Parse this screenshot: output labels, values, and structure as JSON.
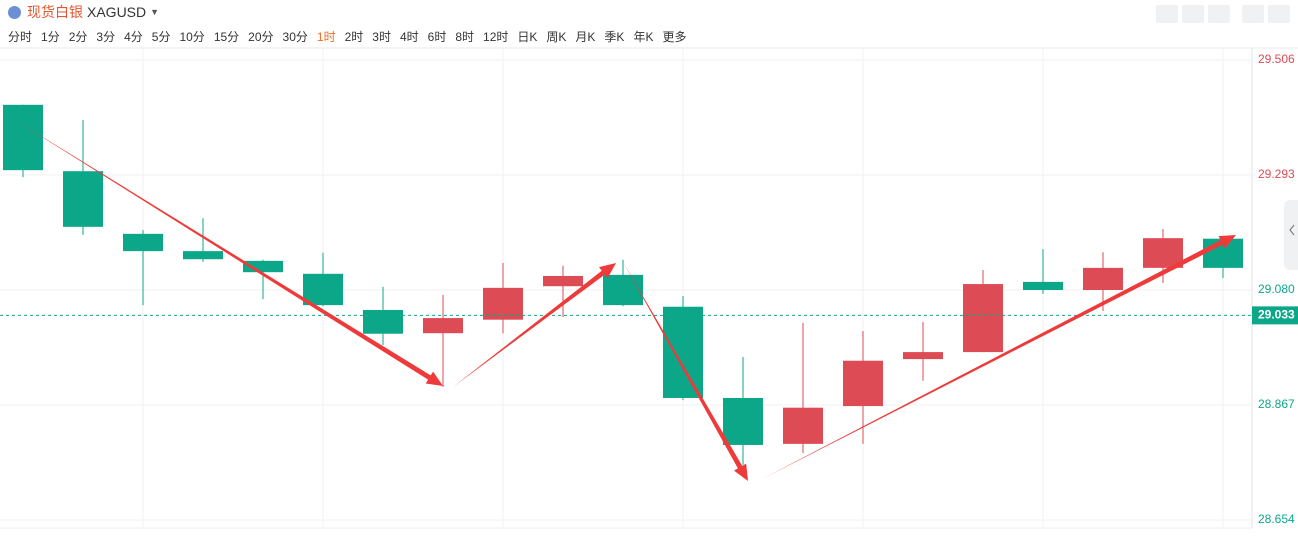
{
  "header": {
    "name": "现货白银",
    "symbol": "XAGUSD",
    "intervals": [
      "分时",
      "1分",
      "2分",
      "3分",
      "4分",
      "5分",
      "10分",
      "15分",
      "20分",
      "30分",
      "1时",
      "2时",
      "3时",
      "4时",
      "6时",
      "8时",
      "12时",
      "日K",
      "周K",
      "月K",
      "季K",
      "年K",
      "更多"
    ],
    "active_interval": 10
  },
  "chart_data": {
    "type": "candlestick",
    "open": [
      29.423,
      29.3,
      29.184,
      29.152,
      29.134,
      29.11,
      29.043,
      29.0,
      29.025,
      29.087,
      29.108,
      29.049,
      28.88,
      28.795,
      28.865,
      28.952,
      28.965,
      29.095,
      29.08,
      29.121,
      29.175
    ],
    "close": [
      29.302,
      29.197,
      29.152,
      29.137,
      29.113,
      29.052,
      28.999,
      29.028,
      29.084,
      29.106,
      29.052,
      28.88,
      28.793,
      28.862,
      28.949,
      28.965,
      29.091,
      29.08,
      29.121,
      29.176,
      29.121
    ],
    "high": [
      29.423,
      29.395,
      29.191,
      29.213,
      29.136,
      29.149,
      29.086,
      29.071,
      29.13,
      29.125,
      29.136,
      29.069,
      28.956,
      29.019,
      29.004,
      29.021,
      29.117,
      29.156,
      29.15,
      29.193,
      29.176
    ],
    "low": [
      29.289,
      29.182,
      29.052,
      29.132,
      29.063,
      29.05,
      28.978,
      28.9,
      29.0,
      29.03,
      29.05,
      28.876,
      28.756,
      28.778,
      28.795,
      28.912,
      28.965,
      29.073,
      29.041,
      29.093,
      29.102
    ],
    "up_color": "#dd4b55",
    "down_color": "#0ca789",
    "ylim": [
      28.654,
      29.506
    ],
    "yticks": [
      28.654,
      28.867,
      {
        "value": 29.08,
        "label": "29.080"
      },
      29.293,
      29.506
    ],
    "ytick_colors": [
      "#0ca789",
      "#0ca789",
      "#0ca789",
      "#dd4b55",
      "#dd4b55"
    ],
    "last_price": 29.033
  }
}
